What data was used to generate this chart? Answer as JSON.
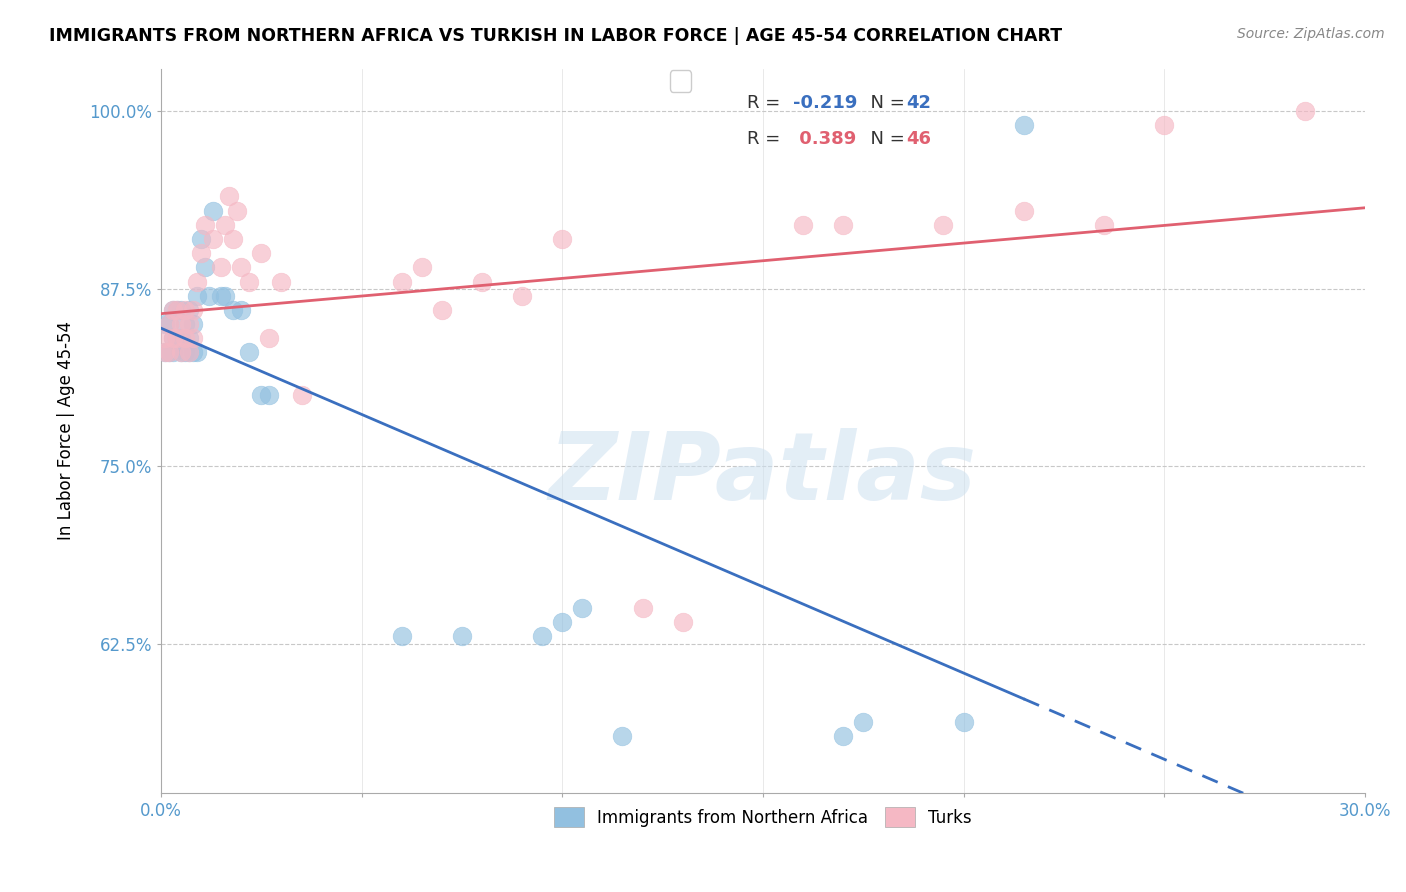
{
  "title": "IMMIGRANTS FROM NORTHERN AFRICA VS TURKISH IN LABOR FORCE | AGE 45-54 CORRELATION CHART",
  "source": "Source: ZipAtlas.com",
  "ylabel": "In Labor Force | Age 45-54",
  "xlim": [
    0.0,
    0.3
  ],
  "ylim": [
    0.52,
    1.03
  ],
  "xticks": [
    0.0,
    0.05,
    0.1,
    0.15,
    0.2,
    0.25,
    0.3
  ],
  "xticklabels": [
    "0.0%",
    "",
    "",
    "",
    "",
    "",
    "30.0%"
  ],
  "yticks": [
    0.625,
    0.75,
    0.875,
    1.0
  ],
  "yticklabels": [
    "62.5%",
    "75.0%",
    "87.5%",
    "100.0%"
  ],
  "blue_R": -0.219,
  "blue_N": 42,
  "pink_R": 0.389,
  "pink_N": 46,
  "blue_color": "#92c0e0",
  "pink_color": "#f5b8c4",
  "blue_line_color": "#3a6fbf",
  "pink_line_color": "#e06070",
  "watermark_text": "ZIPatlas",
  "blue_scatter_x": [
    0.001,
    0.001,
    0.002,
    0.002,
    0.003,
    0.003,
    0.003,
    0.004,
    0.004,
    0.005,
    0.005,
    0.005,
    0.006,
    0.006,
    0.007,
    0.007,
    0.007,
    0.008,
    0.008,
    0.009,
    0.009,
    0.01,
    0.011,
    0.012,
    0.013,
    0.015,
    0.016,
    0.018,
    0.02,
    0.022,
    0.025,
    0.027,
    0.06,
    0.075,
    0.095,
    0.1,
    0.105,
    0.115,
    0.17,
    0.175,
    0.2,
    0.215
  ],
  "blue_scatter_y": [
    0.83,
    0.85,
    0.83,
    0.85,
    0.83,
    0.84,
    0.86,
    0.84,
    0.86,
    0.83,
    0.84,
    0.86,
    0.83,
    0.85,
    0.83,
    0.84,
    0.86,
    0.83,
    0.85,
    0.83,
    0.87,
    0.91,
    0.89,
    0.87,
    0.93,
    0.87,
    0.87,
    0.86,
    0.86,
    0.83,
    0.8,
    0.8,
    0.63,
    0.63,
    0.63,
    0.64,
    0.65,
    0.56,
    0.56,
    0.57,
    0.57,
    0.99
  ],
  "pink_scatter_x": [
    0.001,
    0.001,
    0.002,
    0.002,
    0.003,
    0.003,
    0.004,
    0.004,
    0.005,
    0.005,
    0.006,
    0.006,
    0.007,
    0.007,
    0.008,
    0.008,
    0.009,
    0.01,
    0.011,
    0.013,
    0.015,
    0.016,
    0.017,
    0.018,
    0.019,
    0.02,
    0.022,
    0.025,
    0.027,
    0.03,
    0.035,
    0.06,
    0.065,
    0.07,
    0.08,
    0.09,
    0.1,
    0.12,
    0.13,
    0.16,
    0.17,
    0.195,
    0.215,
    0.235,
    0.25,
    0.285
  ],
  "pink_scatter_y": [
    0.83,
    0.84,
    0.83,
    0.85,
    0.84,
    0.86,
    0.84,
    0.86,
    0.83,
    0.85,
    0.84,
    0.86,
    0.83,
    0.85,
    0.84,
    0.86,
    0.88,
    0.9,
    0.92,
    0.91,
    0.89,
    0.92,
    0.94,
    0.91,
    0.93,
    0.89,
    0.88,
    0.9,
    0.84,
    0.88,
    0.8,
    0.88,
    0.89,
    0.86,
    0.88,
    0.87,
    0.91,
    0.65,
    0.64,
    0.92,
    0.92,
    0.92,
    0.93,
    0.92,
    0.99,
    1.0
  ]
}
